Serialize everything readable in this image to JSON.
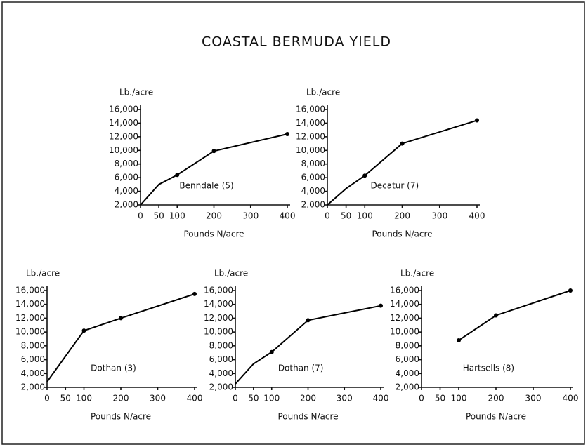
{
  "title": "COASTAL BERMUDA YIELD",
  "chart_data": [
    {
      "type": "line",
      "title": "Benndale (5)",
      "ylabel": "Lb./acre",
      "xlabel": "Pounds N/acre",
      "x": [
        0,
        50,
        100,
        200,
        400
      ],
      "values": [
        2000,
        5000,
        6400,
        9900,
        12400
      ],
      "color": "#000000",
      "xlim": [
        0,
        400
      ],
      "xticks": [
        0,
        50,
        100,
        200,
        300,
        400
      ],
      "ylim": [
        2000,
        16000
      ],
      "yticks": [
        {
          "value": 2000,
          "label": "2,000"
        },
        {
          "value": 4000,
          "label": "4,000"
        },
        {
          "value": 6000,
          "label": "6,000"
        },
        {
          "value": 8000,
          "label": "8,000"
        },
        {
          "value": 10000,
          "label": "10,000"
        },
        {
          "value": 12000,
          "label": "12,000"
        },
        {
          "value": 14000,
          "label": "14,000"
        },
        {
          "value": 16000,
          "label": "16,000"
        }
      ]
    },
    {
      "type": "line",
      "title": "Decatur (7)",
      "ylabel": "Lb./acre",
      "xlabel": "Pounds N/acre",
      "x": [
        0,
        50,
        100,
        200,
        400
      ],
      "values": [
        2000,
        4400,
        6300,
        11000,
        14400
      ],
      "color": "#000000",
      "xlim": [
        0,
        400
      ],
      "xticks": [
        0,
        50,
        100,
        200,
        300,
        400
      ],
      "ylim": [
        2000,
        16000
      ],
      "yticks": [
        {
          "value": 2000,
          "label": "2,000"
        },
        {
          "value": 4000,
          "label": "4,000"
        },
        {
          "value": 6000,
          "label": "6,000"
        },
        {
          "value": 8000,
          "label": "8,000"
        },
        {
          "value": 10000,
          "label": "10,000"
        },
        {
          "value": 12000,
          "label": "12,000"
        },
        {
          "value": 14000,
          "label": "14,000"
        },
        {
          "value": 16000,
          "label": "16,000"
        }
      ]
    },
    {
      "type": "line",
      "title": "Dothan (3)",
      "ylabel": "Lb./acre",
      "xlabel": "Pounds N/acre",
      "x": [
        0,
        100,
        200,
        400
      ],
      "values": [
        2800,
        10200,
        12000,
        15500
      ],
      "color": "#000000",
      "xlim": [
        0,
        400
      ],
      "xticks": [
        0,
        50,
        100,
        200,
        300,
        400
      ],
      "ylim": [
        2000,
        16000
      ],
      "yticks": [
        {
          "value": 2000,
          "label": "2,000"
        },
        {
          "value": 4000,
          "label": "4,000"
        },
        {
          "value": 6000,
          "label": "6,000"
        },
        {
          "value": 8000,
          "label": "8,000"
        },
        {
          "value": 10000,
          "label": "10,000"
        },
        {
          "value": 12000,
          "label": "12,000"
        },
        {
          "value": 14000,
          "label": "14,000"
        },
        {
          "value": 16000,
          "label": "16,000"
        }
      ]
    },
    {
      "type": "line",
      "title": "Dothan (7)",
      "ylabel": "Lb./acre",
      "xlabel": "Pounds N/acre",
      "x": [
        0,
        50,
        100,
        200,
        400
      ],
      "values": [
        2500,
        5400,
        7100,
        11700,
        13800
      ],
      "color": "#000000",
      "xlim": [
        0,
        400
      ],
      "xticks": [
        0,
        50,
        100,
        200,
        300,
        400
      ],
      "ylim": [
        2000,
        16000
      ],
      "yticks": [
        {
          "value": 2000,
          "label": "2,000"
        },
        {
          "value": 4000,
          "label": "4,000"
        },
        {
          "value": 6000,
          "label": "6,000"
        },
        {
          "value": 8000,
          "label": "8,000"
        },
        {
          "value": 10000,
          "label": "10,000"
        },
        {
          "value": 12000,
          "label": "12,000"
        },
        {
          "value": 14000,
          "label": "14,000"
        },
        {
          "value": 16000,
          "label": "16,000"
        }
      ]
    },
    {
      "type": "line",
      "title": "Hartsells (8)",
      "ylabel": "Lb./acre",
      "xlabel": "Pounds N/acre",
      "x": [
        100,
        200,
        400
      ],
      "values": [
        8800,
        12400,
        16000
      ],
      "color": "#000000",
      "xlim": [
        0,
        400
      ],
      "xticks": [
        0,
        50,
        100,
        200,
        300,
        400
      ],
      "ylim": [
        2000,
        16000
      ],
      "yticks": [
        {
          "value": 2000,
          "label": "2,000"
        },
        {
          "value": 4000,
          "label": "4,000"
        },
        {
          "value": 6000,
          "label": "6,000"
        },
        {
          "value": 8000,
          "label": "8,000"
        },
        {
          "value": 10000,
          "label": "10,000"
        },
        {
          "value": 12000,
          "label": "12,000"
        },
        {
          "value": 14000,
          "label": "14,000"
        },
        {
          "value": 16000,
          "label": "16,000"
        }
      ]
    }
  ]
}
